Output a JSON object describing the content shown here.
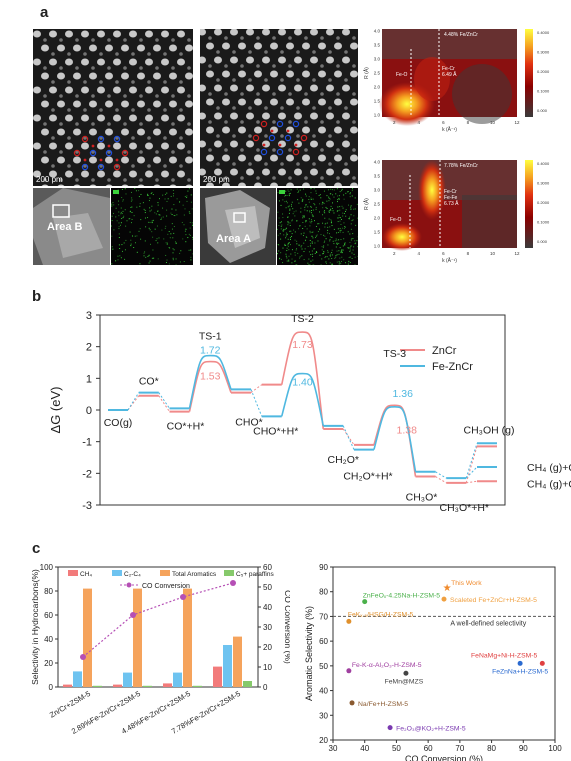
{
  "panels": {
    "a": "a",
    "b": "b",
    "c": "c"
  },
  "panel_a": {
    "img1_scale": "200 pm",
    "img2_scale": "200 pm",
    "area_b": "Area B",
    "area_a": "Area A",
    "wt1": {
      "title": "4.48% Fe/ZnCr",
      "label_feo": "Fe-O",
      "label_fecr": "Fe-Cr",
      "label_fecr_val": "6.49 Å",
      "ylabel": "R (Å)",
      "xlabel": "k (Å⁻¹)",
      "yticks": [
        "1.0",
        "1.5",
        "2.0",
        "2.5",
        "3.0",
        "3.5",
        "4.0"
      ],
      "xticks": [
        "2",
        "4",
        "6",
        "8",
        "10",
        "12"
      ],
      "cbar": [
        "0.4000",
        "0.3000",
        "0.2000",
        "0.1000",
        "0.000"
      ]
    },
    "wt2": {
      "title": "7.78% Fe/ZnCr",
      "label_feo": "Fe-O",
      "label_fecr": "Fe-Cr",
      "label_fefe": "Fe-Fe",
      "label_val": "6.73 Å",
      "ylabel": "R (Å)",
      "xlabel": "k (Å⁻¹)",
      "yticks": [
        "1.0",
        "1.5",
        "2.0",
        "2.5",
        "3.0",
        "3.5",
        "4.0"
      ],
      "xticks": [
        "2",
        "4",
        "6",
        "8",
        "10",
        "12"
      ],
      "cbar": [
        "0.4000",
        "0.3000",
        "0.2000",
        "0.1000",
        "0.000"
      ]
    }
  },
  "chart_data": [
    {
      "type": "line",
      "title": "",
      "ylabel": "ΔG (eV)",
      "ylim": [
        -3,
        3
      ],
      "yticks": [
        -3,
        -2,
        -1,
        0,
        1,
        2,
        3
      ],
      "legend": [
        "ZnCr",
        "Fe-ZnCr"
      ],
      "colors": {
        "ZnCr": "#f08a8a",
        "Fe-ZnCr": "#4fb8e0"
      },
      "states": [
        "CO(g)",
        "CO*",
        "CO*+H*",
        "TS-1",
        "CHO*",
        "CHO*+H*",
        "TS-2",
        "CH2O*",
        "CH2O*+H*",
        "TS-3",
        "CH3O*",
        "CH3O*+H*",
        "CH3OH (g)",
        "CH4 (g)+O*"
      ],
      "series": [
        {
          "name": "ZnCr",
          "levels": [
            0,
            0.45,
            -0.05,
            1.53,
            0.55,
            0.8,
            2.46,
            -0.6,
            -1.1,
            0.15,
            -2.1,
            -2.3,
            -1.15,
            -2.25
          ]
        },
        {
          "name": "Fe-ZnCr",
          "levels": [
            0,
            0.55,
            0.05,
            1.72,
            0.65,
            -0.2,
            1.15,
            -0.5,
            -1.25,
            0.1,
            -1.95,
            -2.15,
            -1.05,
            -1.8
          ]
        }
      ],
      "annotations": {
        "ts1_top": "1.72",
        "ts1_bot": "1.53",
        "ts2_top": "1.73",
        "ts2_bot": "1.40",
        "ts3_top": "1.36",
        "ts3_bot": "1.38"
      },
      "labels": {
        "cog": "CO(g)",
        "cos": "CO*",
        "coh": "CO*+H*",
        "ts1": "TS-1",
        "cho": "CHO*",
        "choh": "CHO*+H*",
        "ts2": "TS-2",
        "ch2o": "CH₂O*",
        "ch2oh": "CH₂O*+H*",
        "ts3": "TS-3",
        "ch3o": "CH₃O*",
        "ch3oh_h": "CH₃O*+H*",
        "ch3ohg": "CH₃OH (g)",
        "ch4a": "CH₄ (g)+O*",
        "ch4b": "CH₄ (g)+O*"
      }
    },
    {
      "type": "bar",
      "categories": [
        "Zn/Cr+ZSM-5",
        "2.89%Fe-Zn/Cr+ZSM-5",
        "4.48%Fe-Zn/Cr+ZSM-5",
        "7.78%Fe-Zn/Cr+ZSM-5"
      ],
      "series": [
        {
          "name": "CH₄",
          "values": [
            2,
            2,
            3,
            17
          ]
        },
        {
          "name": "C₂-C₄",
          "values": [
            13,
            12,
            12,
            35
          ]
        },
        {
          "name": "Total Aromatics",
          "values": [
            82,
            82,
            82,
            42
          ]
        },
        {
          "name": "C₅+ paraffins",
          "values": [
            1,
            1,
            1,
            5
          ]
        }
      ],
      "line": {
        "name": "CO Conversion",
        "values": [
          15,
          36,
          45,
          52
        ]
      },
      "ylabel": "Selectivity in Hydrocarbons(%)",
      "y2label": "CO Conversion (%)",
      "ylim": [
        0,
        100
      ],
      "y2lim": [
        0,
        60
      ],
      "yticks": [
        0,
        20,
        40,
        60,
        80,
        100
      ],
      "y2ticks": [
        0,
        10,
        20,
        30,
        40,
        50,
        60
      ],
      "colors": [
        "#f27b7b",
        "#6ec3f0",
        "#f5a35c",
        "#86c96b",
        "#b54fb5"
      ]
    },
    {
      "type": "scatter",
      "xlabel": "CO Conversion (%)",
      "ylabel": "Aromatic Selectivity (%)",
      "xlim": [
        30,
        100
      ],
      "ylim": [
        20,
        90
      ],
      "xticks": [
        30,
        40,
        50,
        60,
        70,
        80,
        90,
        100
      ],
      "yticks": [
        20,
        30,
        40,
        50,
        60,
        70,
        80,
        90
      ],
      "threshold": {
        "y": 70,
        "label": "A well-defined selectivity"
      },
      "points": [
        {
          "label": "This Work",
          "x": 66,
          "y": 82,
          "color": "#f08a2c"
        },
        {
          "label": "Scaleted Fe+ZnCr+H-ZSM-5",
          "x": 65,
          "y": 77,
          "color": "#f0a040"
        },
        {
          "label": "ZnFeOₓ-4.25Na-H-ZSM-5",
          "x": 40,
          "y": 76,
          "color": "#4ab04a"
        },
        {
          "label": "FeKₓ.₅/HSG/H-ZSM-5",
          "x": 35,
          "y": 68,
          "color": "#e0902c"
        },
        {
          "label": "FeNaMg+Ni-H-ZSM-5",
          "x": 96,
          "y": 51,
          "color": "#e04040"
        },
        {
          "label": "Fe-K-α-Al₂O₃-H-ZSM-5",
          "x": 35,
          "y": 48,
          "color": "#a040a0"
        },
        {
          "label": "FeMn@MZS",
          "x": 53,
          "y": 47,
          "color": "#444444"
        },
        {
          "label": "FeZnNa+H-ZSM-5",
          "x": 89,
          "y": 51,
          "color": "#2a6ad0"
        },
        {
          "label": "Na/Fe+H-ZSM-5",
          "x": 36,
          "y": 35,
          "color": "#8a5a30"
        },
        {
          "label": "Fe₂O₃@KO₂+H-ZSM-5",
          "x": 48,
          "y": 25,
          "color": "#7a3ab0"
        }
      ],
      "threshold_label": "A well-defined selectivity"
    }
  ]
}
